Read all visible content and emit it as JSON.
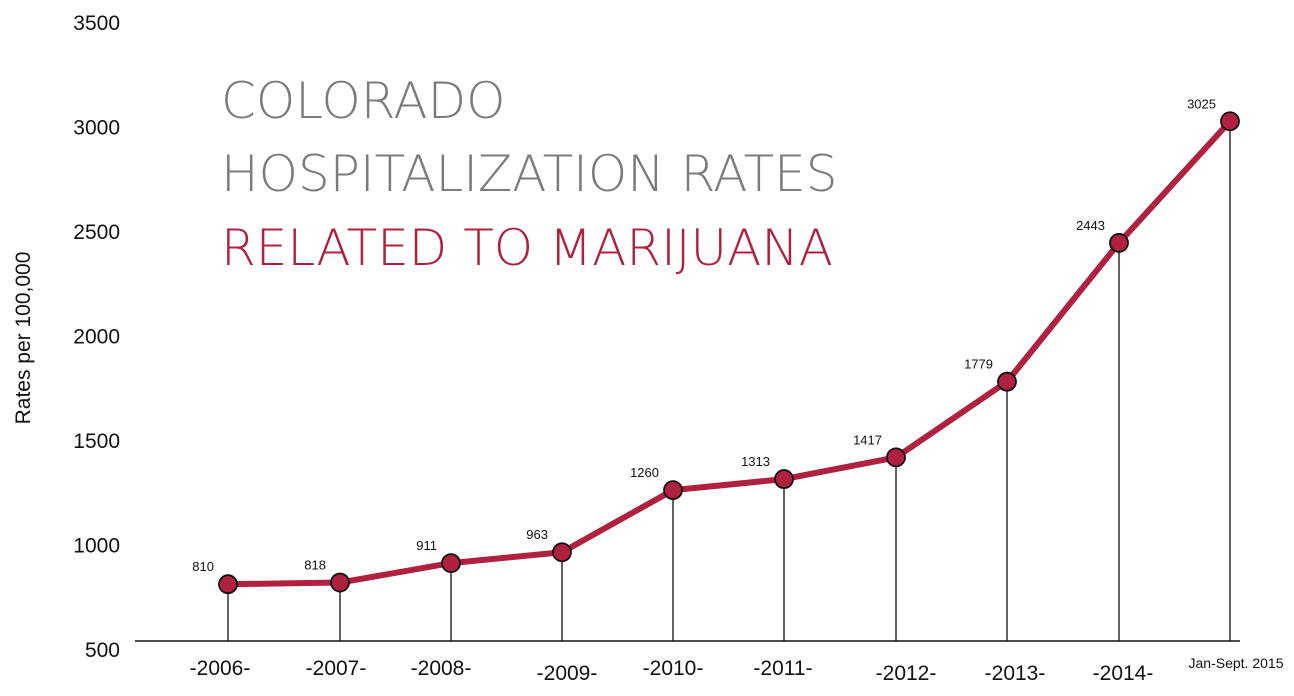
{
  "chart_data": {
    "type": "line",
    "title_lines": [
      "COLORADO",
      "HOSPITALIZATION RATES",
      "RELATED TO MARIJUANA"
    ],
    "title_colors": [
      "#7b7b7b",
      "#7b7b7b",
      "#b0203f"
    ],
    "ylabel": "Rates per 100,000",
    "xlabel": "",
    "ylim": [
      500,
      3500
    ],
    "yticks": [
      "500",
      "1000",
      "1500",
      "2000",
      "2500",
      "3000",
      "3500"
    ],
    "yticks_values": [
      500,
      1000,
      1500,
      2000,
      2500,
      3000,
      3500
    ],
    "categories": [
      "-2006-",
      "-2007-",
      "-2008-",
      "-2009-",
      "-2010-",
      "-2011-",
      "-2012-",
      "-2013-",
      "-2014-",
      "Jan-Sept. 2015"
    ],
    "series": [
      {
        "values": [
          810,
          818,
          911,
          963,
          1260,
          1313,
          1417,
          1779,
          2443,
          3025
        ]
      }
    ],
    "data_labels": [
      "810",
      "818",
      "911",
      "963",
      "1260",
      "1313",
      "1417",
      "1779",
      "2443",
      "3025"
    ],
    "line_color": "#b0203f",
    "grid": false,
    "legend": "none"
  }
}
